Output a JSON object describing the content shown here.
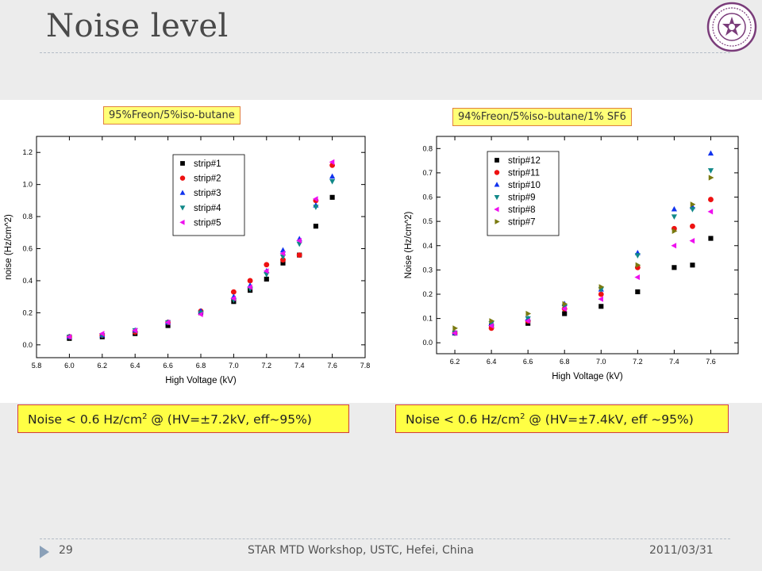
{
  "slide": {
    "title": "Noise level",
    "page_number": "29",
    "footer_center": "STAR MTD Workshop, USTC, Hefei, China",
    "footer_date": "2011/03/31",
    "logo_icon": "university-seal-icon"
  },
  "colors": {
    "title": "#4a4a4a",
    "label_fill": "#ffff77",
    "label_border": "#e08040",
    "box_fill": "#ffff44",
    "box_border": "#d23c3c",
    "rule": "#b4bcc6"
  },
  "labels": {
    "left_gas": "95%Freon/5%iso-butane",
    "right_gas": "94%Freon/5%iso-butane/1% SF6",
    "left_noise_prefix": "Noise < 0.6 Hz/cm",
    "left_noise_sup": "2",
    "left_noise_suffix": " @ (HV=±7.2kV, eff~95%)",
    "right_noise_prefix": "Noise < 0.6 Hz/cm",
    "right_noise_sup": "2",
    "right_noise_suffix": " @ (HV=±7.4kV, eff ~95%)"
  },
  "chart_data": [
    {
      "type": "scatter",
      "xlabel": "High Voltage (kV)",
      "ylabel": "noise (Hz/cm^2)",
      "xlim": [
        5.8,
        7.8
      ],
      "ylim": [
        -0.08,
        1.3
      ],
      "xticks": [
        5.8,
        6.0,
        6.2,
        6.4,
        6.6,
        6.8,
        7.0,
        7.2,
        7.4,
        7.6,
        7.8
      ],
      "yticks": [
        0.0,
        0.2,
        0.4,
        0.6,
        0.8,
        1.0,
        1.2
      ],
      "xtick_labels": [
        "5.8",
        "6.0",
        "6.2",
        "6.4",
        "6.6",
        "6.8",
        "7.0",
        "7.2",
        "7.4",
        "7.6",
        "7.8"
      ],
      "ytick_labels": [
        "0.0",
        "0.2",
        "0.4",
        "0.6",
        "0.8",
        "1.0",
        "1.2"
      ],
      "legend_position": "top-right",
      "series": [
        {
          "name": "strip#1",
          "marker": "square",
          "color": "#000000",
          "x": [
            6.0,
            6.2,
            6.4,
            6.6,
            6.8,
            7.0,
            7.1,
            7.2,
            7.3,
            7.4,
            7.5,
            7.6
          ],
          "y": [
            0.04,
            0.05,
            0.07,
            0.12,
            0.2,
            0.27,
            0.34,
            0.41,
            0.51,
            0.56,
            0.74,
            0.92
          ]
        },
        {
          "name": "strip#2",
          "marker": "circle",
          "color": "#ee1111",
          "x": [
            6.0,
            6.2,
            6.4,
            6.6,
            6.8,
            7.0,
            7.1,
            7.2,
            7.3,
            7.4,
            7.5,
            7.6
          ],
          "y": [
            0.05,
            0.06,
            0.08,
            0.14,
            0.21,
            0.33,
            0.4,
            0.5,
            0.53,
            0.56,
            0.9,
            1.12
          ]
        },
        {
          "name": "strip#3",
          "marker": "triangle-up",
          "color": "#1133ee",
          "x": [
            6.0,
            6.2,
            6.4,
            6.6,
            6.8,
            7.0,
            7.1,
            7.2,
            7.3,
            7.4,
            7.5,
            7.6
          ],
          "y": [
            0.05,
            0.06,
            0.09,
            0.14,
            0.21,
            0.3,
            0.37,
            0.46,
            0.59,
            0.66,
            0.87,
            1.05
          ]
        },
        {
          "name": "strip#4",
          "marker": "triangle-down",
          "color": "#118888",
          "x": [
            6.0,
            6.2,
            6.4,
            6.6,
            6.8,
            7.0,
            7.1,
            7.2,
            7.3,
            7.4,
            7.5,
            7.6
          ],
          "y": [
            0.05,
            0.06,
            0.09,
            0.14,
            0.2,
            0.28,
            0.35,
            0.44,
            0.55,
            0.63,
            0.86,
            1.02
          ]
        },
        {
          "name": "strip#5",
          "marker": "triangle-left",
          "color": "#ee11ee",
          "x": [
            6.0,
            6.2,
            6.4,
            6.6,
            6.8,
            7.0,
            7.1,
            7.2,
            7.3,
            7.4,
            7.5,
            7.6
          ],
          "y": [
            0.05,
            0.07,
            0.09,
            0.14,
            0.19,
            0.29,
            0.36,
            0.46,
            0.57,
            0.65,
            0.91,
            1.14
          ]
        }
      ]
    },
    {
      "type": "scatter",
      "xlabel": "High Voltage (kV)",
      "ylabel": "Noise (Hz/cm^2)",
      "xlim": [
        6.1,
        7.75
      ],
      "ylim": [
        -0.045,
        0.85
      ],
      "xticks": [
        6.2,
        6.4,
        6.6,
        6.8,
        7.0,
        7.2,
        7.4,
        7.6
      ],
      "yticks": [
        0.0,
        0.1,
        0.2,
        0.3,
        0.4,
        0.5,
        0.6,
        0.7,
        0.8
      ],
      "xtick_labels": [
        "6.2",
        "6.4",
        "6.6",
        "6.8",
        "7.0",
        "7.2",
        "7.4",
        "7.6"
      ],
      "ytick_labels": [
        "0.0",
        "0.1",
        "0.2",
        "0.3",
        "0.4",
        "0.5",
        "0.6",
        "0.7",
        "0.8"
      ],
      "legend_position": "top-left",
      "series": [
        {
          "name": "strip#12",
          "marker": "square",
          "color": "#000000",
          "x": [
            6.2,
            6.4,
            6.6,
            6.8,
            7.0,
            7.2,
            7.4,
            7.5,
            7.6
          ],
          "y": [
            0.04,
            0.07,
            0.08,
            0.12,
            0.15,
            0.21,
            0.31,
            0.32,
            0.43
          ]
        },
        {
          "name": "strip#11",
          "marker": "circle",
          "color": "#ee1111",
          "x": [
            6.2,
            6.4,
            6.6,
            6.8,
            7.0,
            7.2,
            7.4,
            7.5,
            7.6
          ],
          "y": [
            0.04,
            0.06,
            0.09,
            0.14,
            0.2,
            0.31,
            0.47,
            0.48,
            0.59
          ]
        },
        {
          "name": "strip#10",
          "marker": "triangle-up",
          "color": "#1133ee",
          "x": [
            6.2,
            6.4,
            6.6,
            6.8,
            7.0,
            7.2,
            7.4,
            7.5,
            7.6
          ],
          "y": [
            0.04,
            0.08,
            0.1,
            0.16,
            0.22,
            0.37,
            0.55,
            0.56,
            0.78
          ]
        },
        {
          "name": "strip#9",
          "marker": "triangle-down",
          "color": "#118888",
          "x": [
            6.2,
            6.4,
            6.6,
            6.8,
            7.0,
            7.2,
            7.4,
            7.5,
            7.6
          ],
          "y": [
            0.04,
            0.08,
            0.1,
            0.15,
            0.22,
            0.36,
            0.52,
            0.55,
            0.71
          ]
        },
        {
          "name": "strip#8",
          "marker": "triangle-left",
          "color": "#ee11ee",
          "x": [
            6.2,
            6.4,
            6.6,
            6.8,
            7.0,
            7.2,
            7.4,
            7.5,
            7.6
          ],
          "y": [
            0.04,
            0.07,
            0.09,
            0.14,
            0.18,
            0.27,
            0.4,
            0.42,
            0.54
          ]
        },
        {
          "name": "strip#7",
          "marker": "triangle-right",
          "color": "#7a7a10",
          "x": [
            6.2,
            6.4,
            6.6,
            6.8,
            7.0,
            7.2,
            7.4,
            7.5,
            7.6
          ],
          "y": [
            0.06,
            0.09,
            0.12,
            0.16,
            0.23,
            0.32,
            0.46,
            0.57,
            0.68
          ]
        }
      ]
    }
  ]
}
